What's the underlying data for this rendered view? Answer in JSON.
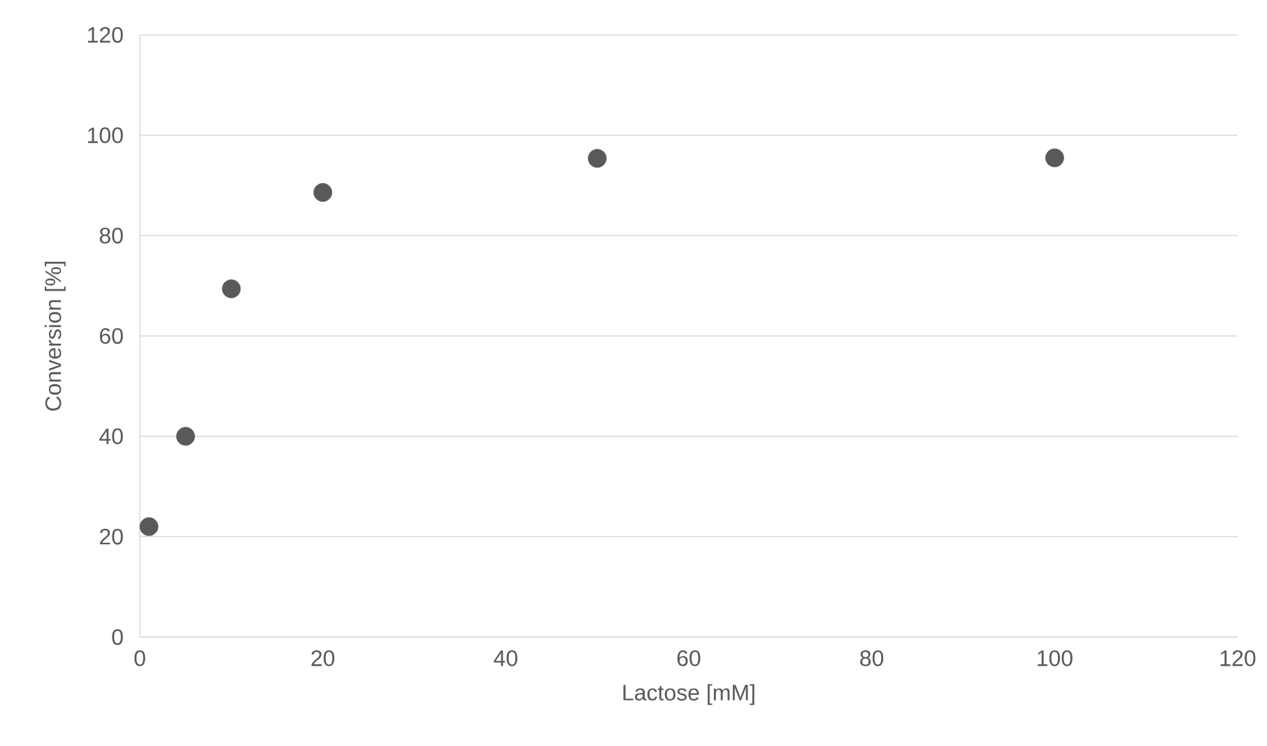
{
  "chart_data": {
    "type": "scatter",
    "xlabel": "Lactose [mM]",
    "ylabel": "Conversion [%]",
    "x": [
      1,
      5,
      10,
      20,
      50,
      100
    ],
    "series": [
      {
        "color": "#595959",
        "values": [
          22,
          40,
          69.4,
          88.6,
          95.4,
          95.5
        ]
      }
    ],
    "xlim": [
      0,
      120
    ],
    "ylim": [
      0,
      120
    ],
    "xticks": [
      0,
      20,
      40,
      60,
      80,
      100,
      120
    ],
    "yticks": [
      0,
      20,
      40,
      60,
      80,
      100,
      120
    ],
    "grid": "y",
    "marker": "circle"
  }
}
